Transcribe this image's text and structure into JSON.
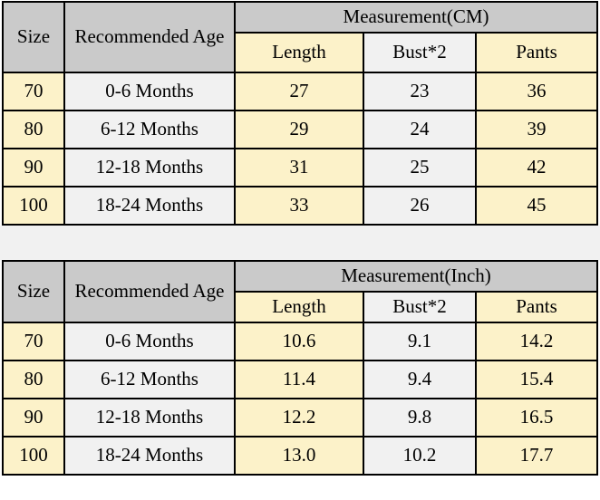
{
  "colors": {
    "header_gray": "#cacaca",
    "cell_yellow": "#fcf2c9",
    "cell_light": "#f1f1f1",
    "border": "#000000",
    "gap_band": "#f1f1f1",
    "text": "#000000"
  },
  "tables": [
    {
      "unit": "CM",
      "headers": {
        "size": "Size",
        "age": "Recommended Age",
        "measurement": "Measurement(CM)",
        "length": "Length",
        "bust": "Bust*2",
        "pants": "Pants"
      },
      "rows": [
        {
          "size": "70",
          "age": "0-6 Months",
          "length": "27",
          "bust": "23",
          "pants": "36"
        },
        {
          "size": "80",
          "age": "6-12 Months",
          "length": "29",
          "bust": "24",
          "pants": "39"
        },
        {
          "size": "90",
          "age": "12-18 Months",
          "length": "31",
          "bust": "25",
          "pants": "42"
        },
        {
          "size": "100",
          "age": "18-24 Months",
          "length": "33",
          "bust": "26",
          "pants": "45"
        }
      ]
    },
    {
      "unit": "Inch",
      "headers": {
        "size": "Size",
        "age": "Recommended Age",
        "measurement": "Measurement(Inch)",
        "length": "Length",
        "bust": "Bust*2",
        "pants": "Pants"
      },
      "rows": [
        {
          "size": "70",
          "age": "0-6 Months",
          "length": "10.6",
          "bust": "9.1",
          "pants": "14.2"
        },
        {
          "size": "80",
          "age": "6-12 Months",
          "length": "11.4",
          "bust": "9.4",
          "pants": "15.4"
        },
        {
          "size": "90",
          "age": "12-18 Months",
          "length": "12.2",
          "bust": "9.8",
          "pants": "16.5"
        },
        {
          "size": "100",
          "age": "18-24 Months",
          "length": "13.0",
          "bust": "10.2",
          "pants": "17.7"
        }
      ]
    }
  ]
}
